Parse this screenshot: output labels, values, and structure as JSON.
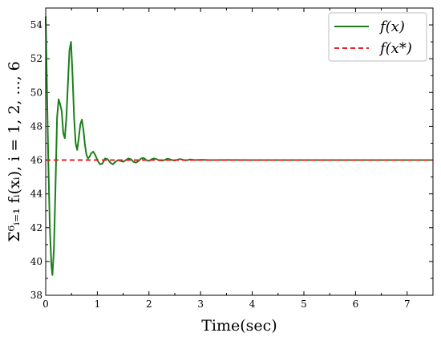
{
  "chart_data": {
    "type": "line",
    "xlabel": "Time(sec)",
    "ylabel": "Σ⁶ᵢ₌₁ fᵢ(xᵢ), i = 1, 2, ..., 6",
    "xlim": [
      0,
      7.5
    ],
    "ylim": [
      38,
      55
    ],
    "xticks": [
      0,
      1,
      2,
      3,
      4,
      5,
      6,
      7
    ],
    "yticks": [
      38,
      40,
      42,
      44,
      46,
      48,
      50,
      52,
      54
    ],
    "grid": false,
    "legend_position": "top-right",
    "series": [
      {
        "name": "f(x)",
        "color": "#1a7f1a",
        "style": "solid",
        "x": [
          0,
          0.02,
          0.05,
          0.08,
          0.11,
          0.13,
          0.16,
          0.19,
          0.22,
          0.25,
          0.28,
          0.31,
          0.34,
          0.37,
          0.4,
          0.43,
          0.46,
          0.49,
          0.52,
          0.55,
          0.58,
          0.61,
          0.64,
          0.67,
          0.7,
          0.73,
          0.76,
          0.79,
          0.82,
          0.85,
          0.88,
          0.92,
          0.96,
          1.0,
          1.05,
          1.1,
          1.15,
          1.2,
          1.25,
          1.3,
          1.35,
          1.4,
          1.45,
          1.5,
          1.55,
          1.6,
          1.65,
          1.7,
          1.75,
          1.8,
          1.85,
          1.9,
          1.95,
          2.0,
          2.05,
          2.1,
          2.15,
          2.2,
          2.25,
          2.3,
          2.35,
          2.4,
          2.45,
          2.5,
          2.55,
          2.6,
          2.65,
          2.7,
          2.75,
          2.8,
          2.9,
          3.0,
          3.2,
          3.5,
          4.0,
          5.0,
          6.0,
          7.0,
          7.5
        ],
        "values": [
          54.5,
          51.0,
          46.0,
          42.0,
          39.8,
          39.2,
          40.8,
          44.5,
          48.5,
          49.6,
          49.3,
          48.9,
          47.6,
          47.3,
          48.5,
          50.5,
          52.5,
          53.0,
          51.0,
          48.5,
          47.0,
          46.6,
          47.3,
          48.1,
          48.4,
          47.8,
          46.9,
          46.3,
          46.1,
          46.2,
          46.4,
          46.5,
          46.3,
          46.0,
          45.75,
          45.8,
          46.1,
          46.05,
          45.85,
          45.75,
          45.9,
          46.0,
          45.95,
          45.9,
          46.0,
          46.1,
          46.05,
          45.9,
          45.85,
          45.95,
          46.1,
          46.12,
          46.0,
          45.95,
          46.05,
          46.1,
          46.05,
          45.98,
          45.97,
          46.0,
          46.08,
          46.05,
          46.0,
          45.97,
          46.02,
          46.06,
          46.03,
          45.98,
          46.0,
          46.04,
          46.0,
          46.02,
          46.0,
          46.01,
          46.0,
          46.0,
          46.0,
          46.0,
          46.0
        ]
      },
      {
        "name": "f(x*)",
        "color": "#e8212a",
        "style": "dashed",
        "x": [
          0,
          7.5
        ],
        "values": [
          46.0,
          46.0
        ]
      }
    ]
  }
}
